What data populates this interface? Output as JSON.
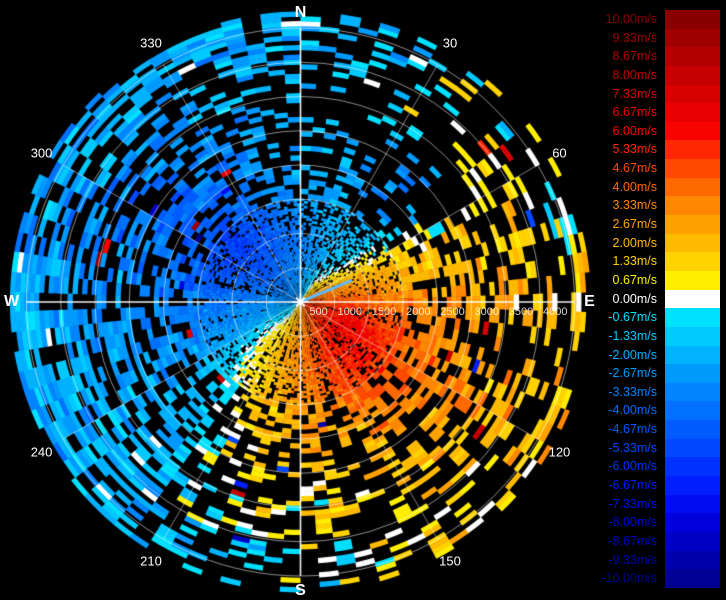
{
  "chart_data": {
    "type": "heatmap",
    "subtype": "polar-doppler-velocity-ppi",
    "title": "",
    "units": "m/s",
    "background_color": "#000000",
    "grid_color": "#ffffff",
    "compass": [
      {
        "label": "N",
        "deg": 0
      },
      {
        "label": "E",
        "deg": 90
      },
      {
        "label": "S",
        "deg": 180
      },
      {
        "label": "W",
        "deg": 270
      }
    ],
    "azimuth_labels": [
      {
        "label": "30",
        "deg": 30
      },
      {
        "label": "60",
        "deg": 60
      },
      {
        "label": "120",
        "deg": 120
      },
      {
        "label": "150",
        "deg": 150
      },
      {
        "label": "210",
        "deg": 210
      },
      {
        "label": "240",
        "deg": 240
      },
      {
        "label": "300",
        "deg": 300
      },
      {
        "label": "330",
        "deg": 330
      }
    ],
    "azimuth_spoke_step_deg": 30,
    "range_ring_step_m": 500,
    "range_max_m": 4200,
    "range_ring_labels": [
      "500",
      "1000",
      "1500",
      "2000",
      "2500",
      "3000",
      "3500",
      "4000"
    ],
    "colormap": {
      "min": -10,
      "max": 10,
      "step": 0.6667,
      "levels": [
        {
          "label": "10.00m/s",
          "value": 10.0,
          "color": "#8a0000"
        },
        {
          "label": "9.33m/s",
          "value": 9.33,
          "color": "#9e0000"
        },
        {
          "label": "8.67m/s",
          "value": 8.67,
          "color": "#b20000"
        },
        {
          "label": "8.00m/s",
          "value": 8.0,
          "color": "#c40000"
        },
        {
          "label": "7.33m/s",
          "value": 7.33,
          "color": "#d60000"
        },
        {
          "label": "6.67m/s",
          "value": 6.67,
          "color": "#e80000"
        },
        {
          "label": "6.00m/s",
          "value": 6.0,
          "color": "#f80400"
        },
        {
          "label": "5.33m/s",
          "value": 5.33,
          "color": "#ff2800"
        },
        {
          "label": "4.67m/s",
          "value": 4.67,
          "color": "#ff4a00"
        },
        {
          "label": "4.00m/s",
          "value": 4.0,
          "color": "#ff6a00"
        },
        {
          "label": "3.33m/s",
          "value": 3.33,
          "color": "#ff8800"
        },
        {
          "label": "2.67m/s",
          "value": 2.67,
          "color": "#ffa200"
        },
        {
          "label": "2.00m/s",
          "value": 2.0,
          "color": "#ffba00"
        },
        {
          "label": "1.33m/s",
          "value": 1.33,
          "color": "#ffd200"
        },
        {
          "label": "0.67m/s",
          "value": 0.67,
          "color": "#ffee00"
        },
        {
          "label": "0.00m/s",
          "value": 0.0,
          "color": "#ffffff"
        },
        {
          "label": "-0.67m/s",
          "value": -0.67,
          "color": "#00e0ff"
        },
        {
          "label": "-1.33m/s",
          "value": -1.33,
          "color": "#00caff"
        },
        {
          "label": "-2.00m/s",
          "value": -2.0,
          "color": "#00b2ff"
        },
        {
          "label": "-2.67m/s",
          "value": -2.67,
          "color": "#009aff"
        },
        {
          "label": "-3.33m/s",
          "value": -3.33,
          "color": "#0084ff"
        },
        {
          "label": "-4.00m/s",
          "value": -4.0,
          "color": "#0070ff"
        },
        {
          "label": "-4.67m/s",
          "value": -4.67,
          "color": "#005cff"
        },
        {
          "label": "-5.33m/s",
          "value": -5.33,
          "color": "#0048ff"
        },
        {
          "label": "-6.00m/s",
          "value": -6.0,
          "color": "#0032ff"
        },
        {
          "label": "-6.67m/s",
          "value": -6.67,
          "color": "#001eff"
        },
        {
          "label": "-7.33m/s",
          "value": -7.33,
          "color": "#000cf2"
        },
        {
          "label": "-8.00m/s",
          "value": -8.0,
          "color": "#0000dc"
        },
        {
          "label": "-8.67m/s",
          "value": -8.67,
          "color": "#0000c2"
        },
        {
          "label": "-9.33m/s",
          "value": -9.33,
          "color": "#0000aa"
        },
        {
          "label": "-10.00m/s",
          "value": -10.0,
          "color": "#000092"
        }
      ]
    },
    "grid": {
      "azimuth_nodes_deg": [
        0,
        22.5,
        45,
        67.5,
        90,
        112.5,
        135,
        157.5,
        180,
        202.5,
        225,
        247.5,
        270,
        292.5,
        315,
        337.5
      ],
      "range_bin_centers_m": [
        250,
        750,
        1250,
        1750,
        2250,
        2750,
        3250,
        3850
      ],
      "radial_velocity_mps": [
        [
          -2.5,
          -1.5,
          1.5,
          3.5,
          4.5,
          5.5,
          5.0,
          4.0,
          3.0,
          1.5,
          -0.5,
          -2.0,
          -2.8,
          -3.2,
          -3.2,
          -3.0
        ],
        [
          -3.5,
          -2.5,
          -1.0,
          2.5,
          4.5,
          6.2,
          6.0,
          5.0,
          3.5,
          2.0,
          0.5,
          -2.5,
          -3.2,
          -4.5,
          -5.0,
          -4.2
        ],
        [
          -3.2,
          -2.0,
          -1.5,
          2.0,
          3.5,
          5.5,
          5.5,
          4.5,
          3.2,
          1.8,
          -0.5,
          -2.8,
          -3.8,
          -5.2,
          -5.5,
          -4.5
        ],
        [
          -2.5,
          -2.0,
          -3.0,
          1.5,
          3.2,
          4.0,
          4.2,
          3.5,
          2.8,
          1.5,
          -1.0,
          -3.0,
          -3.5,
          -4.5,
          -4.8,
          -3.5
        ],
        [
          -2.2,
          -2.5,
          -3.5,
          1.5,
          2.8,
          3.2,
          3.2,
          2.2,
          2.0,
          0.8,
          -1.8,
          -2.8,
          -3.0,
          -4.0,
          -4.0,
          -3.0
        ],
        [
          -1.8,
          -1.5,
          -2.5,
          1.8,
          2.2,
          2.8,
          2.5,
          1.5,
          1.5,
          0.5,
          -2.0,
          -2.5,
          -2.8,
          -3.5,
          -3.5,
          -2.5
        ],
        [
          -1.8,
          -1.2,
          1.0,
          1.8,
          1.8,
          2.2,
          1.8,
          1.0,
          0.8,
          -0.8,
          -1.8,
          -2.2,
          -2.5,
          -3.0,
          -2.8,
          -2.2
        ],
        [
          -2.0,
          -1.0,
          0.5,
          -0.5,
          1.8,
          1.8,
          1.2,
          0.5,
          -0.5,
          -1.5,
          -1.8,
          -2.2,
          -2.2,
          -2.5,
          -2.2,
          -2.0
        ]
      ],
      "data_fill_fraction": [
        [
          0.9,
          0.92,
          0.95,
          0.97,
          0.97,
          0.98,
          0.98,
          0.97,
          0.97,
          0.95,
          0.95,
          0.95,
          0.95,
          0.95,
          0.93,
          0.9
        ],
        [
          0.85,
          0.8,
          0.6,
          0.8,
          0.95,
          0.98,
          0.98,
          0.96,
          0.95,
          0.92,
          0.9,
          0.92,
          0.95,
          0.95,
          0.95,
          0.88
        ],
        [
          0.5,
          0.5,
          0.5,
          0.7,
          0.9,
          0.95,
          0.95,
          0.9,
          0.9,
          0.8,
          0.7,
          0.8,
          0.85,
          0.9,
          0.9,
          0.7
        ],
        [
          0.35,
          0.35,
          0.3,
          0.55,
          0.8,
          0.85,
          0.8,
          0.7,
          0.7,
          0.6,
          0.5,
          0.6,
          0.7,
          0.8,
          0.8,
          0.5
        ],
        [
          0.3,
          0.25,
          0.2,
          0.4,
          0.55,
          0.6,
          0.55,
          0.45,
          0.5,
          0.45,
          0.45,
          0.5,
          0.55,
          0.6,
          0.55,
          0.35
        ],
        [
          0.3,
          0.2,
          0.2,
          0.4,
          0.5,
          0.5,
          0.45,
          0.35,
          0.45,
          0.4,
          0.4,
          0.5,
          0.55,
          0.55,
          0.5,
          0.3
        ],
        [
          0.25,
          0.15,
          0.15,
          0.35,
          0.45,
          0.5,
          0.35,
          0.3,
          0.4,
          0.45,
          0.5,
          0.6,
          0.6,
          0.55,
          0.5,
          0.35
        ],
        [
          0.7,
          0.25,
          0.15,
          0.35,
          0.45,
          0.5,
          0.3,
          0.25,
          0.4,
          0.5,
          0.6,
          0.75,
          0.8,
          0.75,
          0.7,
          0.6
        ]
      ],
      "dropout_color": "#000000",
      "outlier_rate": 0.022,
      "speckle_noise_mps_inner": 0.5,
      "speckle_noise_mps_outer": 1.8,
      "seed": 20110907
    },
    "center_marker": {
      "shape": "white-star"
    },
    "center_streak": {
      "azimuth_deg": 67,
      "length_m": 800,
      "color": "#5fb8ff"
    },
    "legend_position": "right"
  }
}
